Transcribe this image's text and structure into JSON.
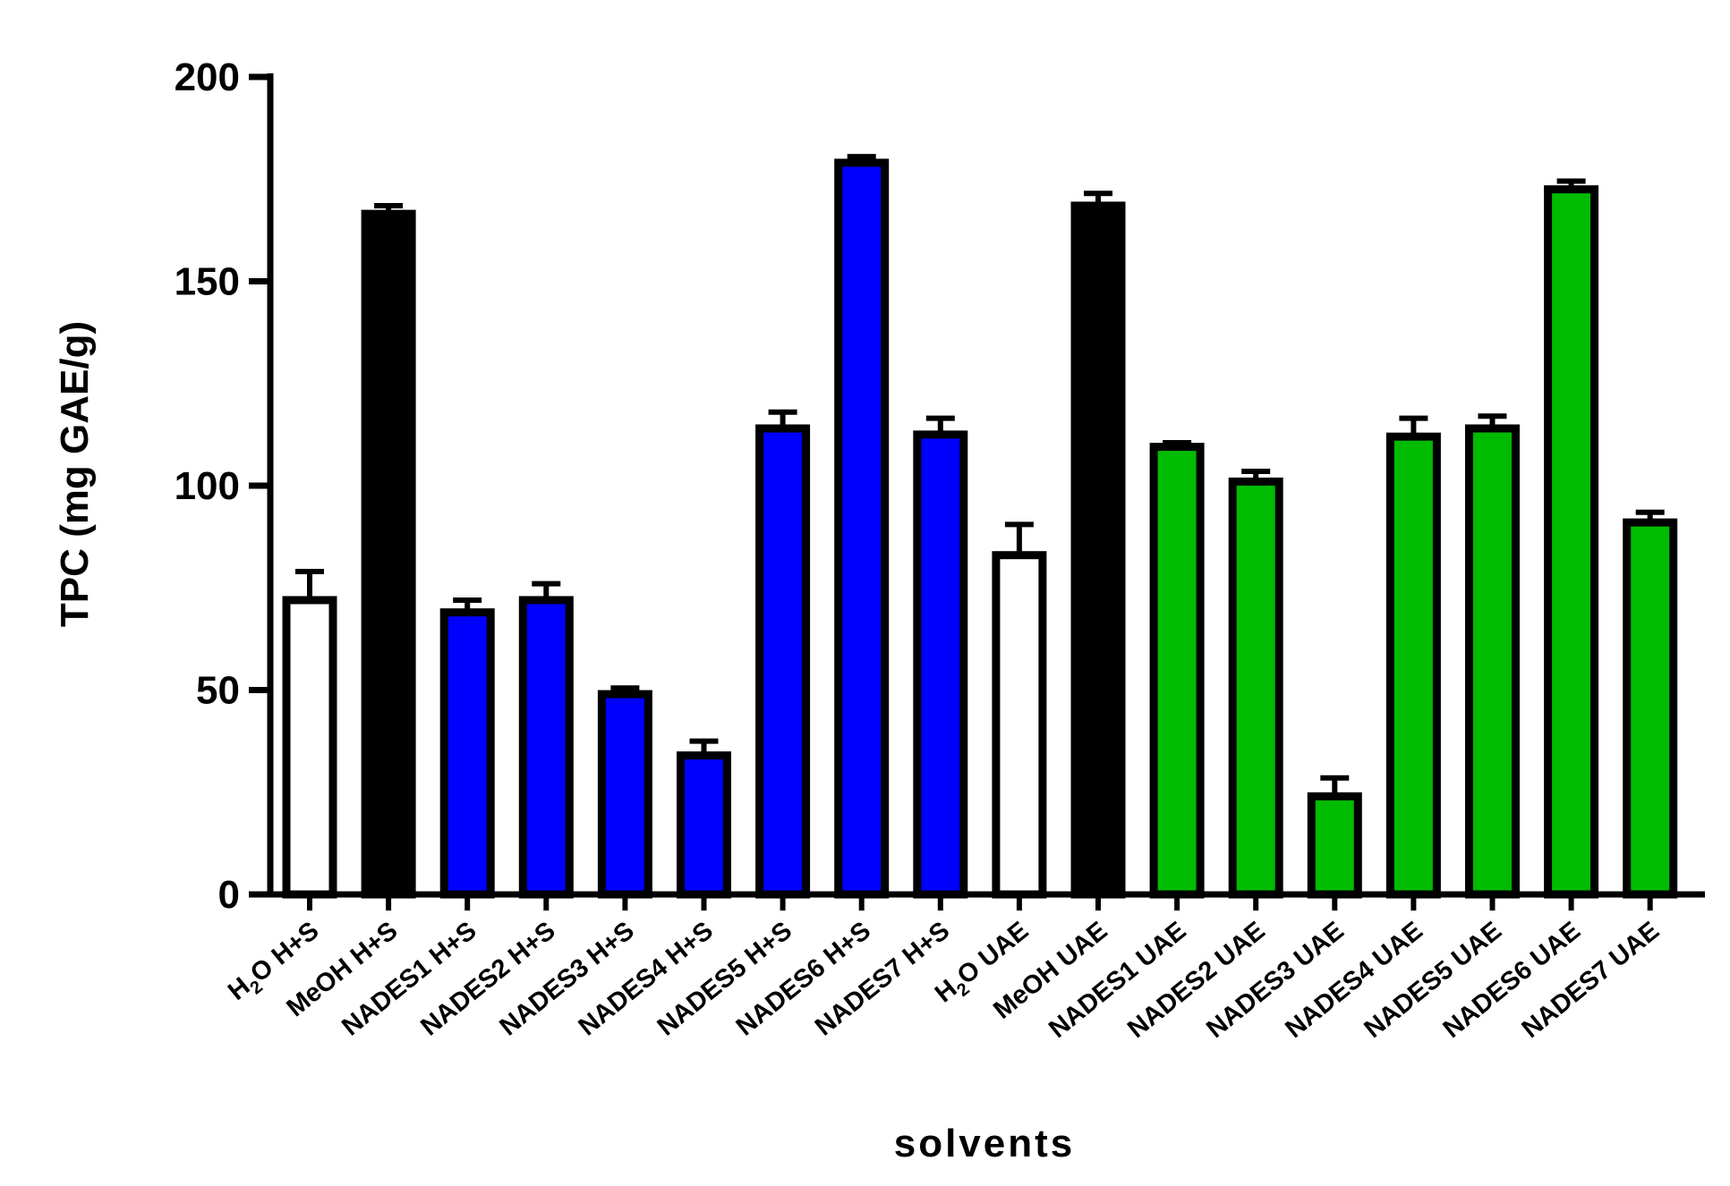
{
  "chart_data": {
    "type": "bar",
    "title": "",
    "xlabel": "solvents",
    "ylabel": "TPC (mg GAE/g)",
    "ylim": [
      0,
      200
    ],
    "yticks": [
      0,
      50,
      100,
      150,
      200
    ],
    "grid": false,
    "categories": [
      {
        "main": "H",
        "sub": "2",
        "rest": "O H+S"
      },
      {
        "main": "MeOH H+S",
        "sub": "",
        "rest": ""
      },
      {
        "main": "NADES1 H+S",
        "sub": "",
        "rest": ""
      },
      {
        "main": "NADES2 H+S",
        "sub": "",
        "rest": ""
      },
      {
        "main": "NADES3 H+S",
        "sub": "",
        "rest": ""
      },
      {
        "main": "NADES4 H+S",
        "sub": "",
        "rest": ""
      },
      {
        "main": "NADES5 H+S",
        "sub": "",
        "rest": ""
      },
      {
        "main": "NADES6 H+S",
        "sub": "",
        "rest": ""
      },
      {
        "main": "NADES7 H+S",
        "sub": "",
        "rest": ""
      },
      {
        "main": "H",
        "sub": "2",
        "rest": "O UAE"
      },
      {
        "main": "MeOH UAE",
        "sub": "",
        "rest": ""
      },
      {
        "main": "NADES1 UAE",
        "sub": "",
        "rest": ""
      },
      {
        "main": "NADES2 UAE",
        "sub": "",
        "rest": ""
      },
      {
        "main": "NADES3 UAE",
        "sub": "",
        "rest": ""
      },
      {
        "main": "NADES4 UAE",
        "sub": "",
        "rest": ""
      },
      {
        "main": "NADES5 UAE",
        "sub": "",
        "rest": ""
      },
      {
        "main": "NADES6 UAE",
        "sub": "",
        "rest": ""
      },
      {
        "main": "NADES7 UAE",
        "sub": "",
        "rest": ""
      }
    ],
    "values": [
      72,
      166.5,
      69,
      72,
      49,
      34,
      114,
      179,
      112.5,
      83,
      168.5,
      109.5,
      101,
      24,
      112,
      114,
      172.5,
      91
    ],
    "errors": [
      7,
      2,
      3,
      4,
      1.5,
      3.5,
      4,
      1.5,
      4,
      7.5,
      3,
      1,
      2.5,
      4.5,
      4.5,
      3,
      2,
      2.5
    ],
    "colors": [
      "#ffffff",
      "#000000",
      "#0000ff",
      "#0000ff",
      "#0000ff",
      "#0000ff",
      "#0000ff",
      "#0000ff",
      "#0000ff",
      "#ffffff",
      "#000000",
      "#00bb00",
      "#00bb00",
      "#00bb00",
      "#00bb00",
      "#00bb00",
      "#00bb00",
      "#00bb00"
    ],
    "outline_color": "#000000"
  }
}
